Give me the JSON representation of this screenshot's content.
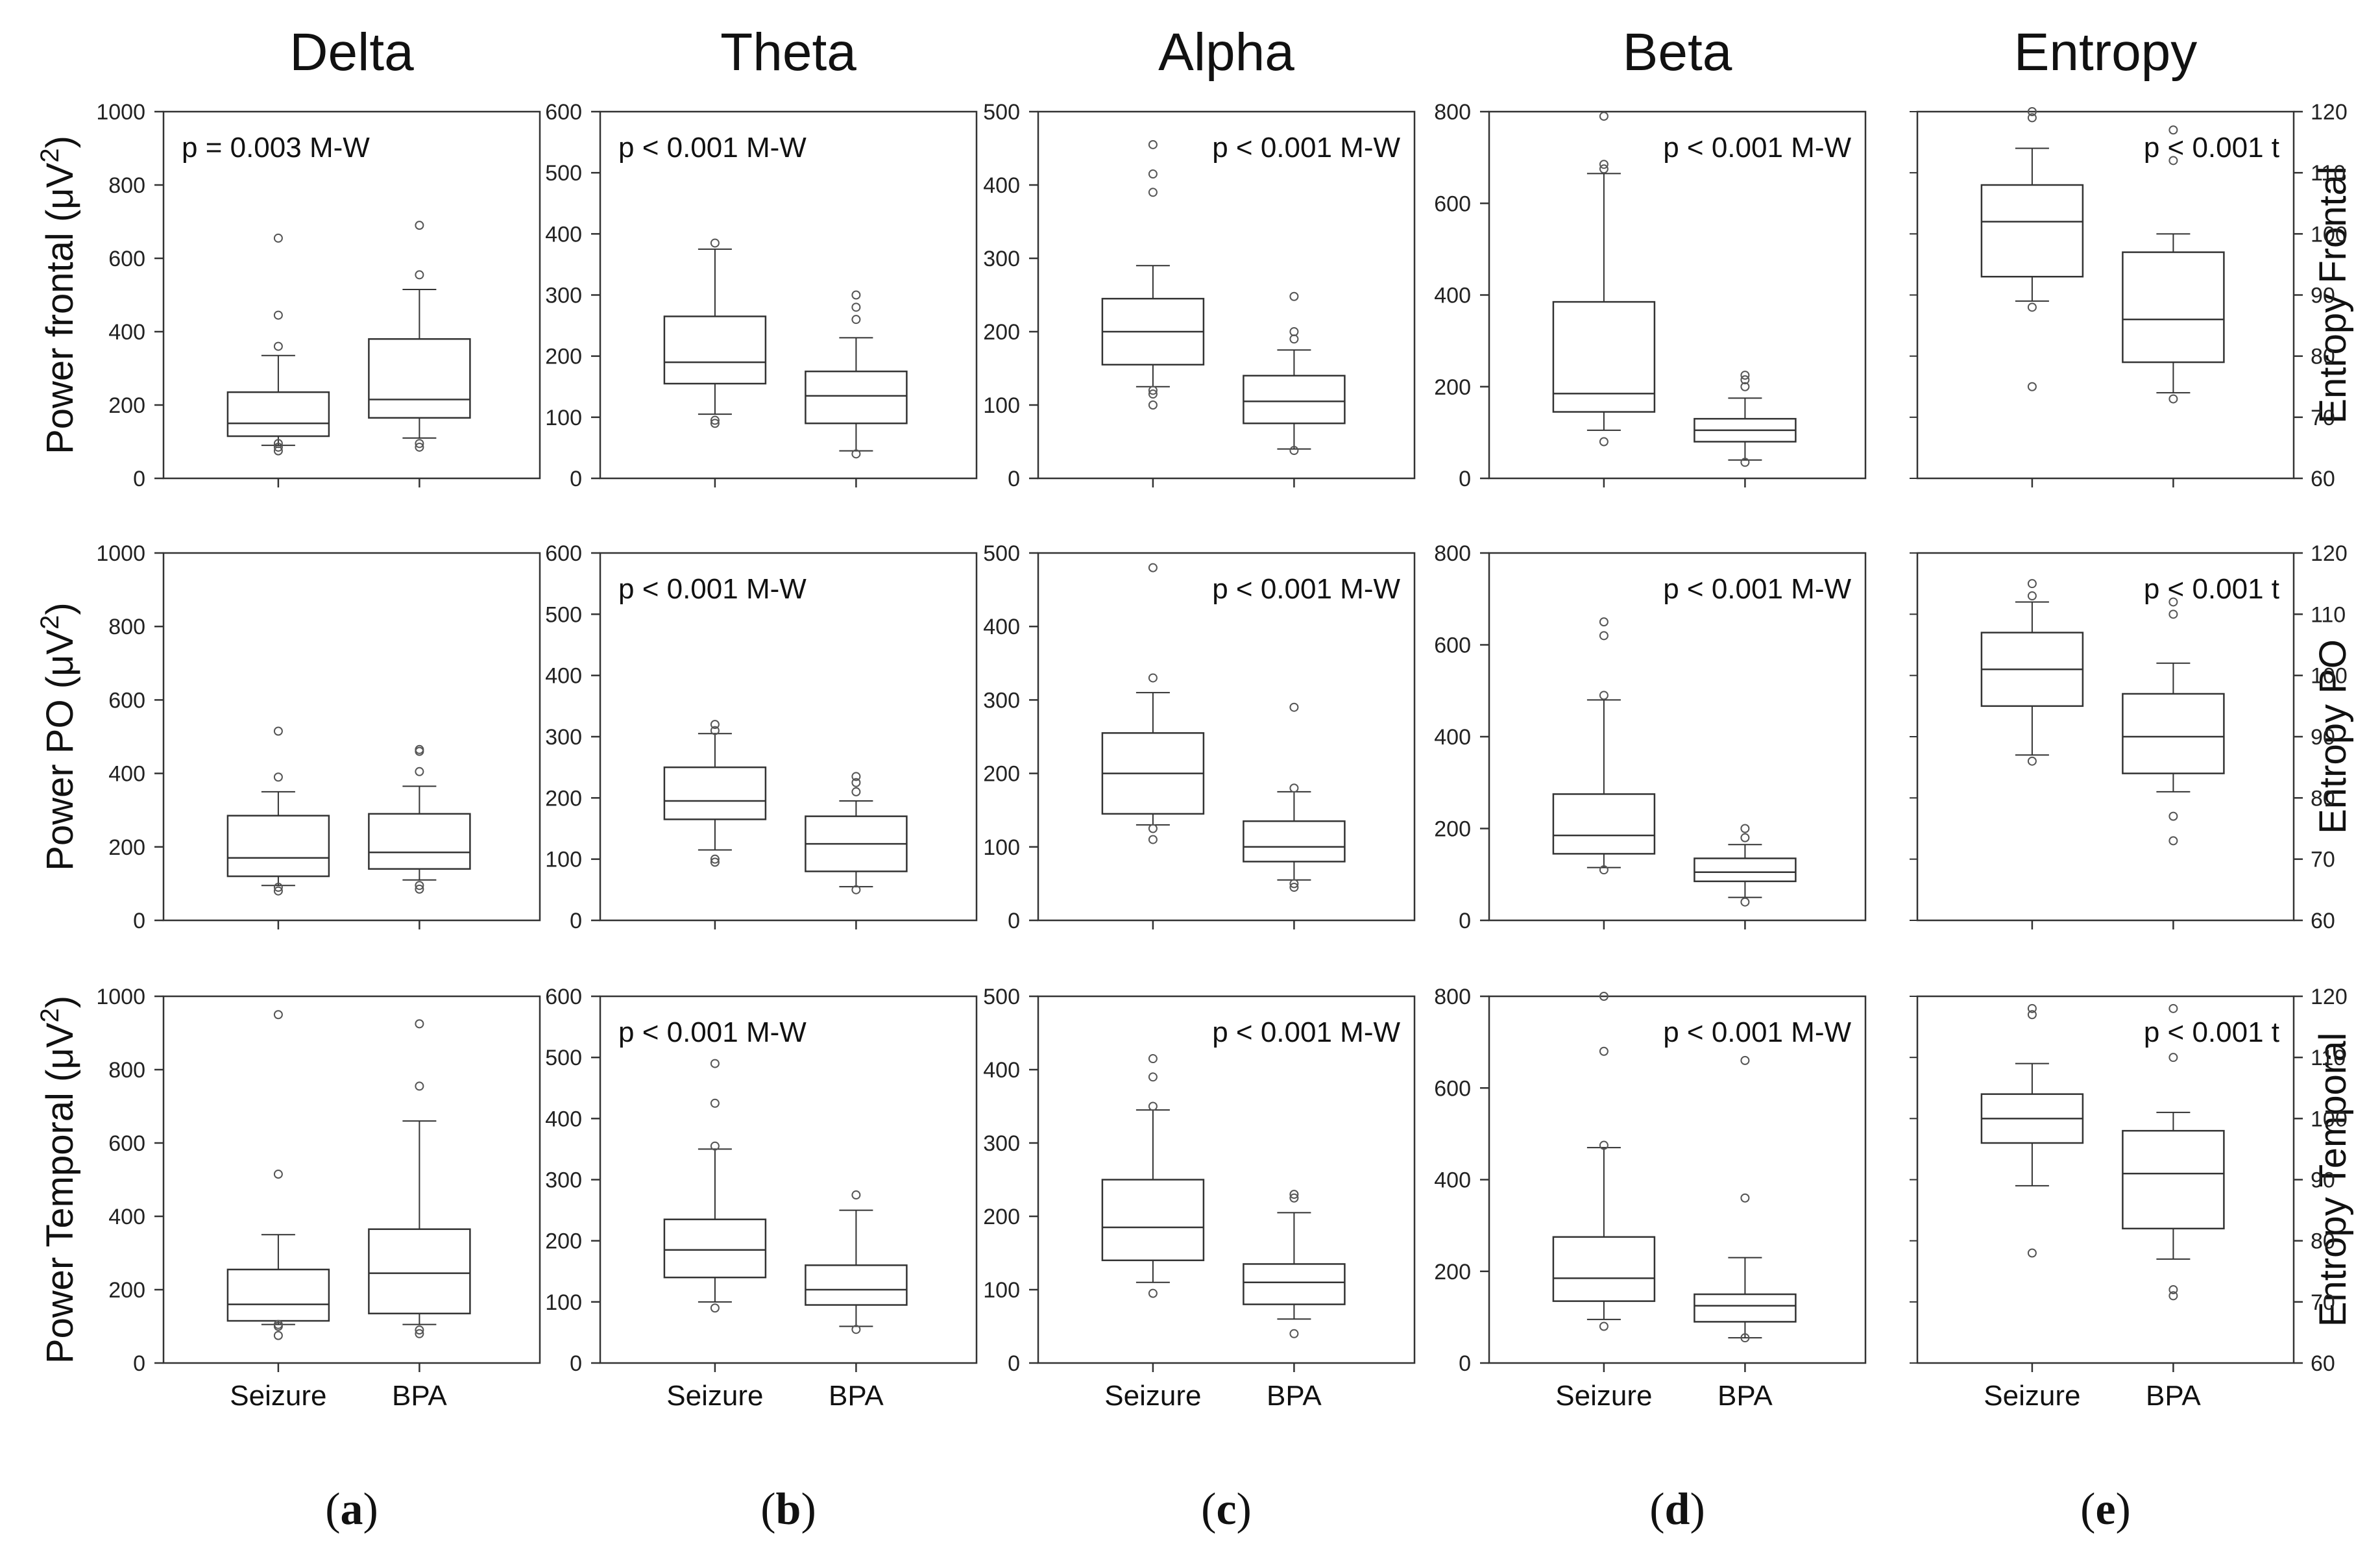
{
  "columns": [
    {
      "key": "delta",
      "title": "Delta",
      "letter": "a",
      "ylim": [
        0,
        1000
      ],
      "ticks": [
        0,
        200,
        400,
        600,
        800,
        1000
      ],
      "axis_side": "left"
    },
    {
      "key": "theta",
      "title": "Theta",
      "letter": "b",
      "ylim": [
        0,
        600
      ],
      "ticks": [
        0,
        100,
        200,
        300,
        400,
        500,
        600
      ],
      "axis_side": "left"
    },
    {
      "key": "alpha",
      "title": "Alpha",
      "letter": "c",
      "ylim": [
        0,
        500
      ],
      "ticks": [
        0,
        100,
        200,
        300,
        400,
        500
      ],
      "axis_side": "left"
    },
    {
      "key": "beta",
      "title": "Beta",
      "letter": "d",
      "ylim": [
        0,
        800
      ],
      "ticks": [
        0,
        200,
        400,
        600,
        800
      ],
      "axis_side": "left"
    },
    {
      "key": "entropy",
      "title": "Entropy",
      "letter": "e",
      "ylim": [
        60,
        120
      ],
      "ticks": [
        60,
        70,
        80,
        90,
        100,
        110,
        120
      ],
      "axis_side": "right"
    }
  ],
  "rows": [
    {
      "key": "frontal",
      "left_label": {
        "base": "Power frontal (μV",
        "sup": "2",
        "tail": ")"
      },
      "right_label": "Entropy Frontal"
    },
    {
      "key": "po",
      "left_label": {
        "base": "Power PO (μV",
        "sup": "2",
        "tail": ")"
      },
      "right_label": "Entropy PO"
    },
    {
      "key": "temporal",
      "left_label": {
        "base": "Power Temporal (μV",
        "sup": "2",
        "tail": ")"
      },
      "right_label": "Entropy Temporal"
    }
  ],
  "categories": [
    "Seizure",
    "BPA"
  ],
  "chart_data": {
    "type": "box",
    "title": "",
    "categories": [
      "Seizure",
      "BPA"
    ],
    "panels": [
      {
        "row": 0,
        "col": 0,
        "pval": "p = 0.003 M-W",
        "pval_pos": "top-left",
        "boxes": [
          {
            "q1": 115,
            "median": 150,
            "q3": 235,
            "whisker_low": 90,
            "whisker_high": 335,
            "outliers": [
              75,
              85,
              95,
              360,
              445,
              655
            ]
          },
          {
            "q1": 165,
            "median": 215,
            "q3": 380,
            "whisker_low": 110,
            "whisker_high": 515,
            "outliers": [
              85,
              95,
              555,
              690
            ]
          }
        ]
      },
      {
        "row": 0,
        "col": 1,
        "pval": "p < 0.001 M-W",
        "pval_pos": "top-left",
        "boxes": [
          {
            "q1": 155,
            "median": 190,
            "q3": 265,
            "whisker_low": 105,
            "whisker_high": 375,
            "outliers": [
              90,
              95,
              385
            ]
          },
          {
            "q1": 90,
            "median": 135,
            "q3": 175,
            "whisker_low": 45,
            "whisker_high": 230,
            "outliers": [
              40,
              260,
              280,
              300
            ]
          }
        ]
      },
      {
        "row": 0,
        "col": 2,
        "pval": "p < 0.001 M-W",
        "pval_pos": "top-right",
        "boxes": [
          {
            "q1": 155,
            "median": 200,
            "q3": 245,
            "whisker_low": 125,
            "whisker_high": 290,
            "outliers": [
              100,
              115,
              120,
              390,
              415,
              455
            ]
          },
          {
            "q1": 75,
            "median": 105,
            "q3": 140,
            "whisker_low": 40,
            "whisker_high": 175,
            "outliers": [
              38,
              190,
              200,
              248
            ]
          }
        ]
      },
      {
        "row": 0,
        "col": 3,
        "pval": "p < 0.001 M-W",
        "pval_pos": "top-right",
        "boxes": [
          {
            "q1": 145,
            "median": 185,
            "q3": 385,
            "whisker_low": 105,
            "whisker_high": 665,
            "outliers": [
              80,
              675,
              685,
              790
            ]
          },
          {
            "q1": 80,
            "median": 105,
            "q3": 130,
            "whisker_low": 40,
            "whisker_high": 175,
            "outliers": [
              35,
              200,
              215,
              225
            ]
          }
        ]
      },
      {
        "row": 0,
        "col": 4,
        "pval": "p < 0.001 t",
        "pval_pos": "top-right",
        "boxes": [
          {
            "q1": 93,
            "median": 102,
            "q3": 108,
            "whisker_low": 89,
            "whisker_high": 114,
            "outliers": [
              75,
              88,
              119,
              120
            ]
          },
          {
            "q1": 79,
            "median": 86,
            "q3": 97,
            "whisker_low": 74,
            "whisker_high": 100,
            "outliers": [
              73,
              112,
              117
            ]
          }
        ]
      },
      {
        "row": 1,
        "col": 0,
        "pval": "",
        "pval_pos": "none",
        "boxes": [
          {
            "q1": 120,
            "median": 170,
            "q3": 285,
            "whisker_low": 95,
            "whisker_high": 350,
            "outliers": [
              80,
              90,
              390,
              515
            ]
          },
          {
            "q1": 140,
            "median": 185,
            "q3": 290,
            "whisker_low": 110,
            "whisker_high": 365,
            "outliers": [
              85,
              95,
              405,
              460,
              465
            ]
          }
        ]
      },
      {
        "row": 1,
        "col": 1,
        "pval": "p < 0.001 M-W",
        "pval_pos": "top-left",
        "boxes": [
          {
            "q1": 165,
            "median": 195,
            "q3": 250,
            "whisker_low": 115,
            "whisker_high": 305,
            "outliers": [
              95,
              100,
              310,
              320
            ]
          },
          {
            "q1": 80,
            "median": 125,
            "q3": 170,
            "whisker_low": 55,
            "whisker_high": 195,
            "outliers": [
              50,
              210,
              225,
              235
            ]
          }
        ]
      },
      {
        "row": 1,
        "col": 2,
        "pval": "p < 0.001 M-W",
        "pval_pos": "top-right",
        "boxes": [
          {
            "q1": 145,
            "median": 200,
            "q3": 255,
            "whisker_low": 130,
            "whisker_high": 310,
            "outliers": [
              110,
              125,
              330,
              480
            ]
          },
          {
            "q1": 80,
            "median": 100,
            "q3": 135,
            "whisker_low": 55,
            "whisker_high": 175,
            "outliers": [
              45,
              50,
              180,
              290
            ]
          }
        ]
      },
      {
        "row": 1,
        "col": 3,
        "pval": "p < 0.001 M-W",
        "pval_pos": "top-right",
        "boxes": [
          {
            "q1": 145,
            "median": 185,
            "q3": 275,
            "whisker_low": 115,
            "whisker_high": 480,
            "outliers": [
              110,
              490,
              620,
              650
            ]
          },
          {
            "q1": 85,
            "median": 105,
            "q3": 135,
            "whisker_low": 50,
            "whisker_high": 165,
            "outliers": [
              40,
              180,
              200
            ]
          }
        ]
      },
      {
        "row": 1,
        "col": 4,
        "pval": "p < 0.001 t",
        "pval_pos": "top-right",
        "boxes": [
          {
            "q1": 95,
            "median": 101,
            "q3": 107,
            "whisker_low": 87,
            "whisker_high": 112,
            "outliers": [
              86,
              113,
              115
            ]
          },
          {
            "q1": 84,
            "median": 90,
            "q3": 97,
            "whisker_low": 81,
            "whisker_high": 102,
            "outliers": [
              77,
              73,
              110,
              112
            ]
          }
        ]
      },
      {
        "row": 2,
        "col": 0,
        "pval": "",
        "pval_pos": "none",
        "boxes": [
          {
            "q1": 115,
            "median": 160,
            "q3": 255,
            "whisker_low": 105,
            "whisker_high": 350,
            "outliers": [
              75,
              100,
              105,
              515,
              950
            ]
          },
          {
            "q1": 135,
            "median": 245,
            "q3": 365,
            "whisker_low": 105,
            "whisker_high": 660,
            "outliers": [
              80,
              90,
              755,
              925
            ]
          }
        ]
      },
      {
        "row": 2,
        "col": 1,
        "pval": "p < 0.001 M-W",
        "pval_pos": "top-left",
        "boxes": [
          {
            "q1": 140,
            "median": 185,
            "q3": 235,
            "whisker_low": 100,
            "whisker_high": 350,
            "outliers": [
              90,
              355,
              425,
              490
            ]
          },
          {
            "q1": 95,
            "median": 120,
            "q3": 160,
            "whisker_low": 60,
            "whisker_high": 250,
            "outliers": [
              55,
              275
            ]
          }
        ]
      },
      {
        "row": 2,
        "col": 2,
        "pval": "p < 0.001 M-W",
        "pval_pos": "top-right",
        "boxes": [
          {
            "q1": 140,
            "median": 185,
            "q3": 250,
            "whisker_low": 110,
            "whisker_high": 345,
            "outliers": [
              95,
              350,
              390,
              415
            ]
          },
          {
            "q1": 80,
            "median": 110,
            "q3": 135,
            "whisker_low": 60,
            "whisker_high": 205,
            "outliers": [
              40,
              225,
              230
            ]
          }
        ]
      },
      {
        "row": 2,
        "col": 3,
        "pval": "p < 0.001 M-W",
        "pval_pos": "top-right",
        "boxes": [
          {
            "q1": 135,
            "median": 185,
            "q3": 275,
            "whisker_low": 95,
            "whisker_high": 470,
            "outliers": [
              80,
              475,
              680,
              800
            ]
          },
          {
            "q1": 90,
            "median": 125,
            "q3": 150,
            "whisker_low": 55,
            "whisker_high": 230,
            "outliers": [
              55,
              360,
              660
            ]
          }
        ]
      },
      {
        "row": 2,
        "col": 4,
        "pval": "p < 0.001 t",
        "pval_pos": "top-right",
        "boxes": [
          {
            "q1": 96,
            "median": 100,
            "q3": 104,
            "whisker_low": 89,
            "whisker_high": 109,
            "outliers": [
              78,
              117,
              118
            ]
          },
          {
            "q1": 82,
            "median": 91,
            "q3": 98,
            "whisker_low": 77,
            "whisker_high": 101,
            "outliers": [
              71,
              72,
              110,
              118
            ]
          }
        ]
      }
    ]
  }
}
